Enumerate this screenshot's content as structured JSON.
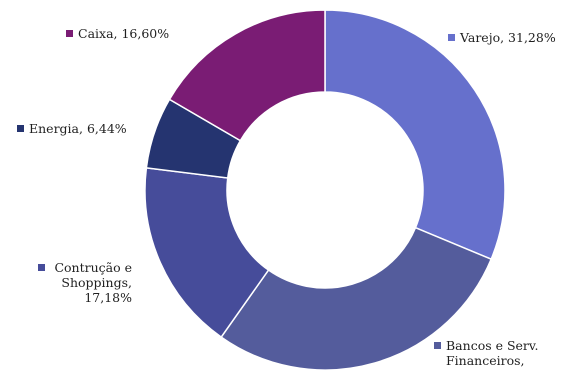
{
  "chart_data": {
    "type": "pie",
    "variant": "donut",
    "title": "",
    "slices": [
      {
        "label": "Varejo",
        "value": 31.28,
        "display": "Varejo, 31,28%",
        "color": "#6670CC"
      },
      {
        "label": "Bancos e Serv. Financeiros",
        "value": 28.5,
        "display": "Bancos e Serv.\nFinanceiros,",
        "color": "#545C9C"
      },
      {
        "label": "Contrução e Shoppings",
        "value": 17.18,
        "display": "Contrução e\nShoppings,\n17,18%",
        "color": "#464C9A"
      },
      {
        "label": "Energia",
        "value": 6.44,
        "display": "Energia, 6,44%",
        "color": "#253470"
      },
      {
        "label": "Caixa",
        "value": 16.6,
        "display": "Caixa, 16,60%",
        "color": "#7A1C74"
      }
    ],
    "legend": "none",
    "start_angle": "top",
    "direction": "clockwise"
  }
}
